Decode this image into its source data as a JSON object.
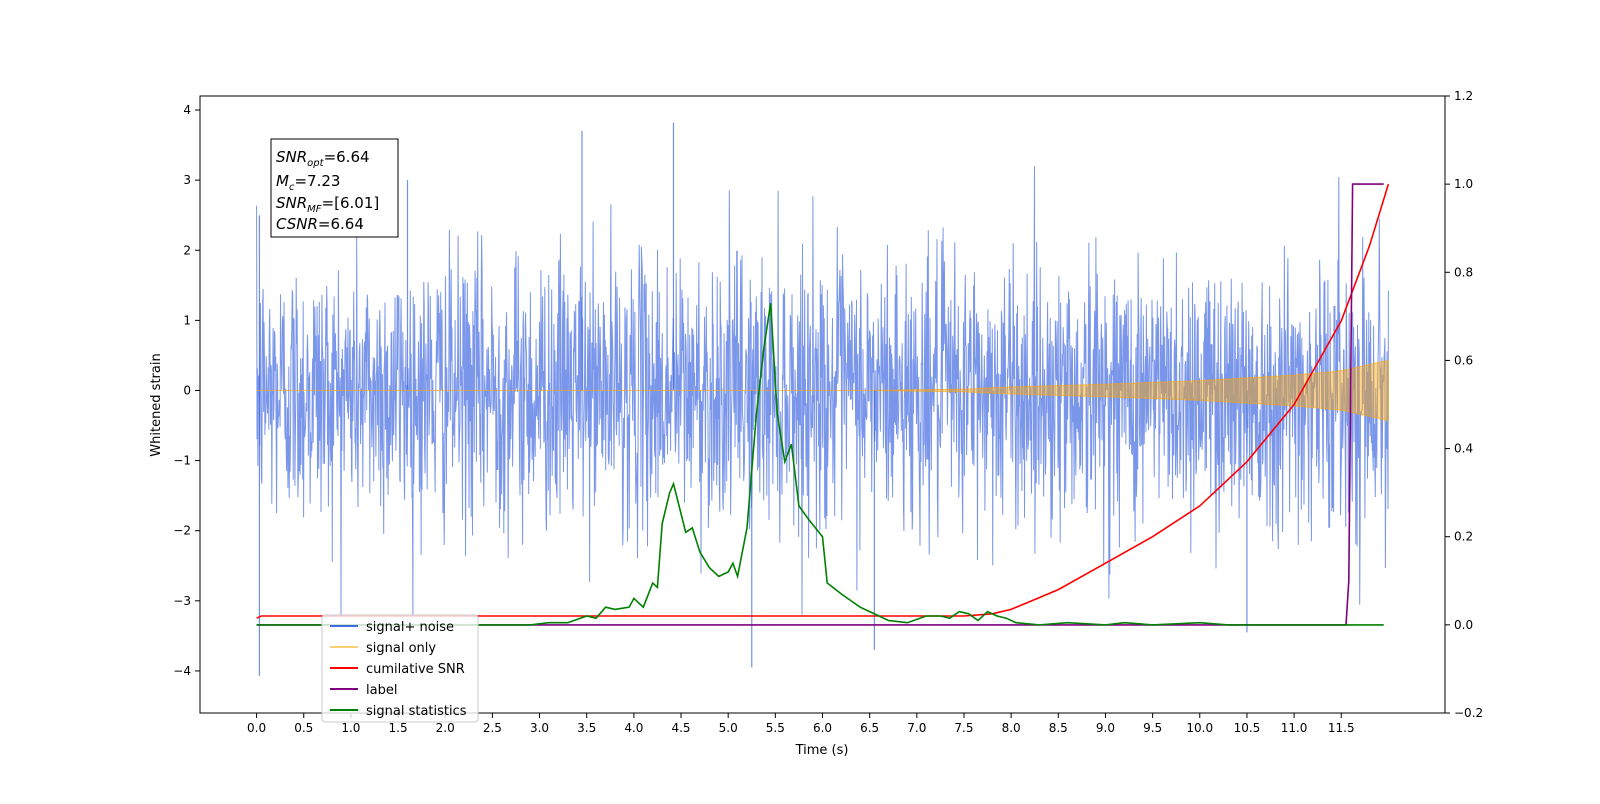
{
  "chart_data": {
    "type": "line",
    "xlabel": "Time (s)",
    "ylabel": "Whitened strain",
    "xlim": [
      -0.6,
      12.6
    ],
    "ylim": [
      -4.6,
      4.2
    ],
    "y2lim": [
      -0.2,
      1.2
    ],
    "x_ticks": [
      "0.0",
      "0.5",
      "1.0",
      "1.5",
      "2.0",
      "2.5",
      "3.0",
      "3.5",
      "4.0",
      "4.5",
      "5.0",
      "5.5",
      "6.0",
      "6.5",
      "7.0",
      "7.5",
      "8.0",
      "8.5",
      "9.0",
      "9.5",
      "10.0",
      "10.5",
      "11.0",
      "11.5"
    ],
    "y_ticks": [
      "4",
      "3",
      "2",
      "1",
      "0",
      "−1",
      "−2",
      "−3",
      "−4"
    ],
    "y2_ticks": [
      "1.2",
      "1.0",
      "0.8",
      "0.6",
      "0.4",
      "0.2",
      "0.0",
      "−0.2"
    ],
    "annotation": {
      "line1_main": "SNR",
      "line1_sub": "opt",
      "line1_rest": "=6.64",
      "line2_main": "M",
      "line2_sub": "c",
      "line2_rest": "=7.23",
      "line3_main": "SNR",
      "line3_sub": "MF",
      "line3_rest": "=[6.01]",
      "line4_main": "CSNR",
      "line4_rest": "=6.64"
    },
    "legend": {
      "placement": "lower-left",
      "entries": [
        {
          "label": "signal+ noise",
          "color": "#4169e1"
        },
        {
          "label": "signal only",
          "color": "#ffa500"
        },
        {
          "label": "cumilative SNR",
          "color": "#ff0000"
        },
        {
          "label": "label",
          "color": "#800080"
        },
        {
          "label": "signal statistics",
          "color": "#008000"
        }
      ]
    },
    "series": [
      {
        "name": "signal+ noise",
        "axis": "left",
        "color": "#4169e1",
        "x_range": [
          0.0,
          12.0
        ],
        "amplitude_range": [
          -4.07,
          3.82
        ],
        "notable_peaks": [
          [
            0.03,
            2.5
          ],
          [
            1.6,
            3.0
          ],
          [
            3.45,
            3.7
          ],
          [
            4.42,
            3.82
          ],
          [
            5.25,
            -3.95
          ],
          [
            6.55,
            -3.7
          ],
          [
            10.5,
            -3.45
          ],
          [
            0.03,
            -4.07
          ]
        ]
      },
      {
        "name": "signal only",
        "axis": "left",
        "color": "#ffa500",
        "envelope": [
          [
            0.0,
            0.0
          ],
          [
            6.5,
            0.0
          ],
          [
            7.5,
            0.02
          ],
          [
            8.0,
            0.05
          ],
          [
            9.0,
            0.09
          ],
          [
            10.0,
            0.14
          ],
          [
            11.0,
            0.22
          ],
          [
            11.5,
            0.28
          ],
          [
            12.0,
            0.43
          ]
        ]
      },
      {
        "name": "cumilative SNR",
        "axis": "right",
        "color": "#ff0000",
        "points": [
          [
            0.0,
            0.015
          ],
          [
            0.05,
            0.02
          ],
          [
            7.5,
            0.02
          ],
          [
            7.8,
            0.025
          ],
          [
            8.0,
            0.035
          ],
          [
            8.5,
            0.08
          ],
          [
            9.0,
            0.14
          ],
          [
            9.5,
            0.2
          ],
          [
            10.0,
            0.27
          ],
          [
            10.5,
            0.37
          ],
          [
            11.0,
            0.5
          ],
          [
            11.5,
            0.69
          ],
          [
            11.8,
            0.86
          ],
          [
            12.0,
            1.0
          ]
        ]
      },
      {
        "name": "label",
        "axis": "right",
        "color": "#800080",
        "points": [
          [
            0.0,
            0.0
          ],
          [
            11.55,
            0.0
          ],
          [
            11.58,
            0.1
          ],
          [
            11.62,
            1.0
          ],
          [
            11.95,
            1.0
          ]
        ]
      },
      {
        "name": "signal statistics",
        "axis": "right",
        "color": "#008000",
        "points": [
          [
            0.0,
            0.0
          ],
          [
            2.9,
            0.0
          ],
          [
            3.1,
            0.005
          ],
          [
            3.3,
            0.005
          ],
          [
            3.5,
            0.02
          ],
          [
            3.6,
            0.015
          ],
          [
            3.7,
            0.04
          ],
          [
            3.8,
            0.035
          ],
          [
            3.95,
            0.04
          ],
          [
            4.0,
            0.06
          ],
          [
            4.1,
            0.04
          ],
          [
            4.2,
            0.095
          ],
          [
            4.25,
            0.085
          ],
          [
            4.3,
            0.23
          ],
          [
            4.38,
            0.3
          ],
          [
            4.42,
            0.32
          ],
          [
            4.55,
            0.21
          ],
          [
            4.62,
            0.22
          ],
          [
            4.7,
            0.165
          ],
          [
            4.8,
            0.13
          ],
          [
            4.9,
            0.11
          ],
          [
            5.0,
            0.12
          ],
          [
            5.05,
            0.14
          ],
          [
            5.1,
            0.11
          ],
          [
            5.2,
            0.22
          ],
          [
            5.3,
            0.48
          ],
          [
            5.38,
            0.63
          ],
          [
            5.45,
            0.73
          ],
          [
            5.52,
            0.48
          ],
          [
            5.6,
            0.37
          ],
          [
            5.67,
            0.41
          ],
          [
            5.75,
            0.27
          ],
          [
            5.85,
            0.24
          ],
          [
            6.0,
            0.2
          ],
          [
            6.05,
            0.095
          ],
          [
            6.2,
            0.07
          ],
          [
            6.3,
            0.055
          ],
          [
            6.4,
            0.04
          ],
          [
            6.5,
            0.03
          ],
          [
            6.7,
            0.01
          ],
          [
            6.9,
            0.005
          ],
          [
            7.1,
            0.02
          ],
          [
            7.25,
            0.02
          ],
          [
            7.35,
            0.015
          ],
          [
            7.45,
            0.03
          ],
          [
            7.55,
            0.025
          ],
          [
            7.65,
            0.01
          ],
          [
            7.75,
            0.03
          ],
          [
            7.85,
            0.02
          ],
          [
            7.95,
            0.015
          ],
          [
            8.05,
            0.005
          ],
          [
            8.3,
            0.0
          ],
          [
            8.6,
            0.005
          ],
          [
            9.0,
            0.0
          ],
          [
            9.2,
            0.005
          ],
          [
            9.5,
            0.0
          ],
          [
            10.0,
            0.005
          ],
          [
            10.3,
            0.0
          ],
          [
            11.0,
            0.0
          ],
          [
            11.95,
            0.0
          ]
        ]
      }
    ]
  }
}
